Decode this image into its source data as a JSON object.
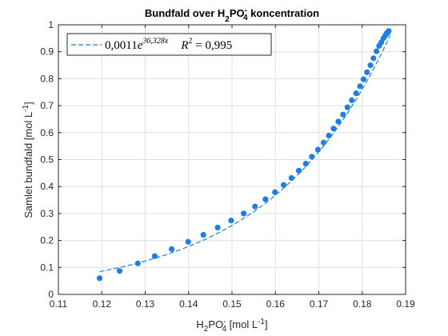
{
  "chart_data": {
    "type": "scatter",
    "title": {
      "pre": "Bundfald over H",
      "sub1": "2",
      "mid": "PO",
      "sup": "-",
      "sub2": "4",
      "post": " koncentration"
    },
    "xlabel": {
      "pre": "H",
      "sub1": "2",
      "mid": "PO",
      "sup": "-",
      "sub2": "4",
      "post": " [mol L",
      "sup2": "-1",
      "end": "]"
    },
    "ylabel": {
      "pre": "Samlet bundfald [mol L",
      "sup": "-1",
      "post": "]"
    },
    "xlim": [
      0.11,
      0.19
    ],
    "ylim": [
      0,
      1
    ],
    "xticks": [
      0.11,
      0.12,
      0.13,
      0.14,
      0.15,
      0.16,
      0.17,
      0.18,
      0.19
    ],
    "xtick_labels": [
      "0.11",
      "0.12",
      "0.13",
      "0.14",
      "0.15",
      "0.16",
      "0.17",
      "0.18",
      "0.19"
    ],
    "yticks": [
      0,
      0.1,
      0.2,
      0.3,
      0.4,
      0.5,
      0.6,
      0.7,
      0.8,
      0.9,
      1
    ],
    "ytick_labels": [
      "0",
      "0.1",
      "0.2",
      "0.3",
      "0.4",
      "0.5",
      "0.6",
      "0.7",
      "0.8",
      "0.9",
      "1"
    ],
    "grid": true,
    "series": [
      {
        "kind": "points",
        "color": "#1f7fe0",
        "x": [
          0.1195,
          0.1241,
          0.1283,
          0.1322,
          0.1361,
          0.1399,
          0.1434,
          0.1467,
          0.1498,
          0.1527,
          0.1553,
          0.1577,
          0.1599,
          0.1619,
          0.1637,
          0.1654,
          0.167,
          0.1684,
          0.1698,
          0.1711,
          0.1723,
          0.1734,
          0.1745,
          0.1756,
          0.1766,
          0.1776,
          0.1786,
          0.1795,
          0.1803,
          0.1811,
          0.1819,
          0.1826,
          0.1833,
          0.1839,
          0.1844,
          0.1849,
          0.1853,
          0.1856,
          0.1859,
          0.1861
        ],
        "y": [
          0.06,
          0.087,
          0.115,
          0.142,
          0.168,
          0.195,
          0.221,
          0.248,
          0.274,
          0.3,
          0.326,
          0.353,
          0.379,
          0.406,
          0.432,
          0.459,
          0.485,
          0.511,
          0.537,
          0.563,
          0.589,
          0.615,
          0.641,
          0.667,
          0.694,
          0.72,
          0.746,
          0.772,
          0.798,
          0.824,
          0.85,
          0.876,
          0.902,
          0.922,
          0.935,
          0.95,
          0.96,
          0.968,
          0.972,
          0.977
        ]
      },
      {
        "kind": "fit",
        "color": "#1f7fe0",
        "a": 0.0011,
        "b": 36.328,
        "x_start": 0.1195,
        "x_end": 0.1865
      }
    ],
    "legend": {
      "position": "top-left",
      "coef": "0,0011",
      "exp": "36,328x",
      "r2_value": "0,995"
    }
  }
}
